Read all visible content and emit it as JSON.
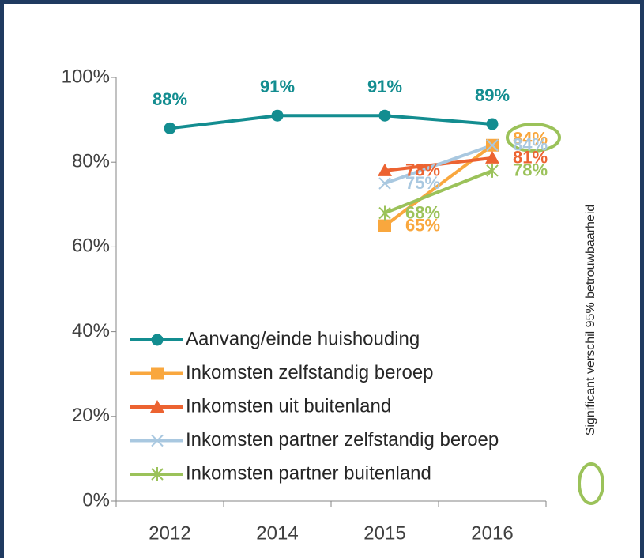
{
  "chart_data": {
    "type": "line",
    "categories": [
      "2012",
      "2014",
      "2015",
      "2016"
    ],
    "series": [
      {
        "name": "Aanvang/einde huishouding",
        "color": "#138d90",
        "marker": "circle",
        "values": [
          88,
          91,
          91,
          89
        ],
        "value_labels": [
          "88%",
          "91%",
          "91%",
          "89%"
        ]
      },
      {
        "name": "Inkomsten zelfstandig beroep",
        "color": "#f9a73e",
        "marker": "square",
        "values": [
          null,
          null,
          65,
          84
        ],
        "value_labels": [
          null,
          null,
          "65%",
          "84%"
        ]
      },
      {
        "name": "Inkomsten uit buitenland",
        "color": "#ec6331",
        "marker": "triangle",
        "values": [
          null,
          null,
          78,
          81
        ],
        "value_labels": [
          null,
          null,
          "78%",
          "81%"
        ]
      },
      {
        "name": "Inkomsten partner zelfstandig beroep",
        "color": "#a9c8e0",
        "marker": "x",
        "values": [
          null,
          null,
          75,
          84
        ],
        "value_labels": [
          null,
          null,
          "75%",
          "84%"
        ]
      },
      {
        "name": "Inkomsten partner buitenland",
        "color": "#9bc25a",
        "marker": "star",
        "values": [
          null,
          null,
          68,
          78
        ],
        "value_labels": [
          null,
          null,
          "68%",
          "78%"
        ]
      }
    ],
    "ylim": [
      0,
      100
    ],
    "yticks": [
      {
        "value": 0,
        "label": "0%"
      },
      {
        "value": 20,
        "label": "20%"
      },
      {
        "value": 40,
        "label": "40%"
      },
      {
        "value": 60,
        "label": "60%"
      },
      {
        "value": 80,
        "label": "80%"
      },
      {
        "value": 100,
        "label": "100%"
      }
    ],
    "annotation": "Significant verschil 95% betrouwbaarheid",
    "legend": "lower left"
  }
}
